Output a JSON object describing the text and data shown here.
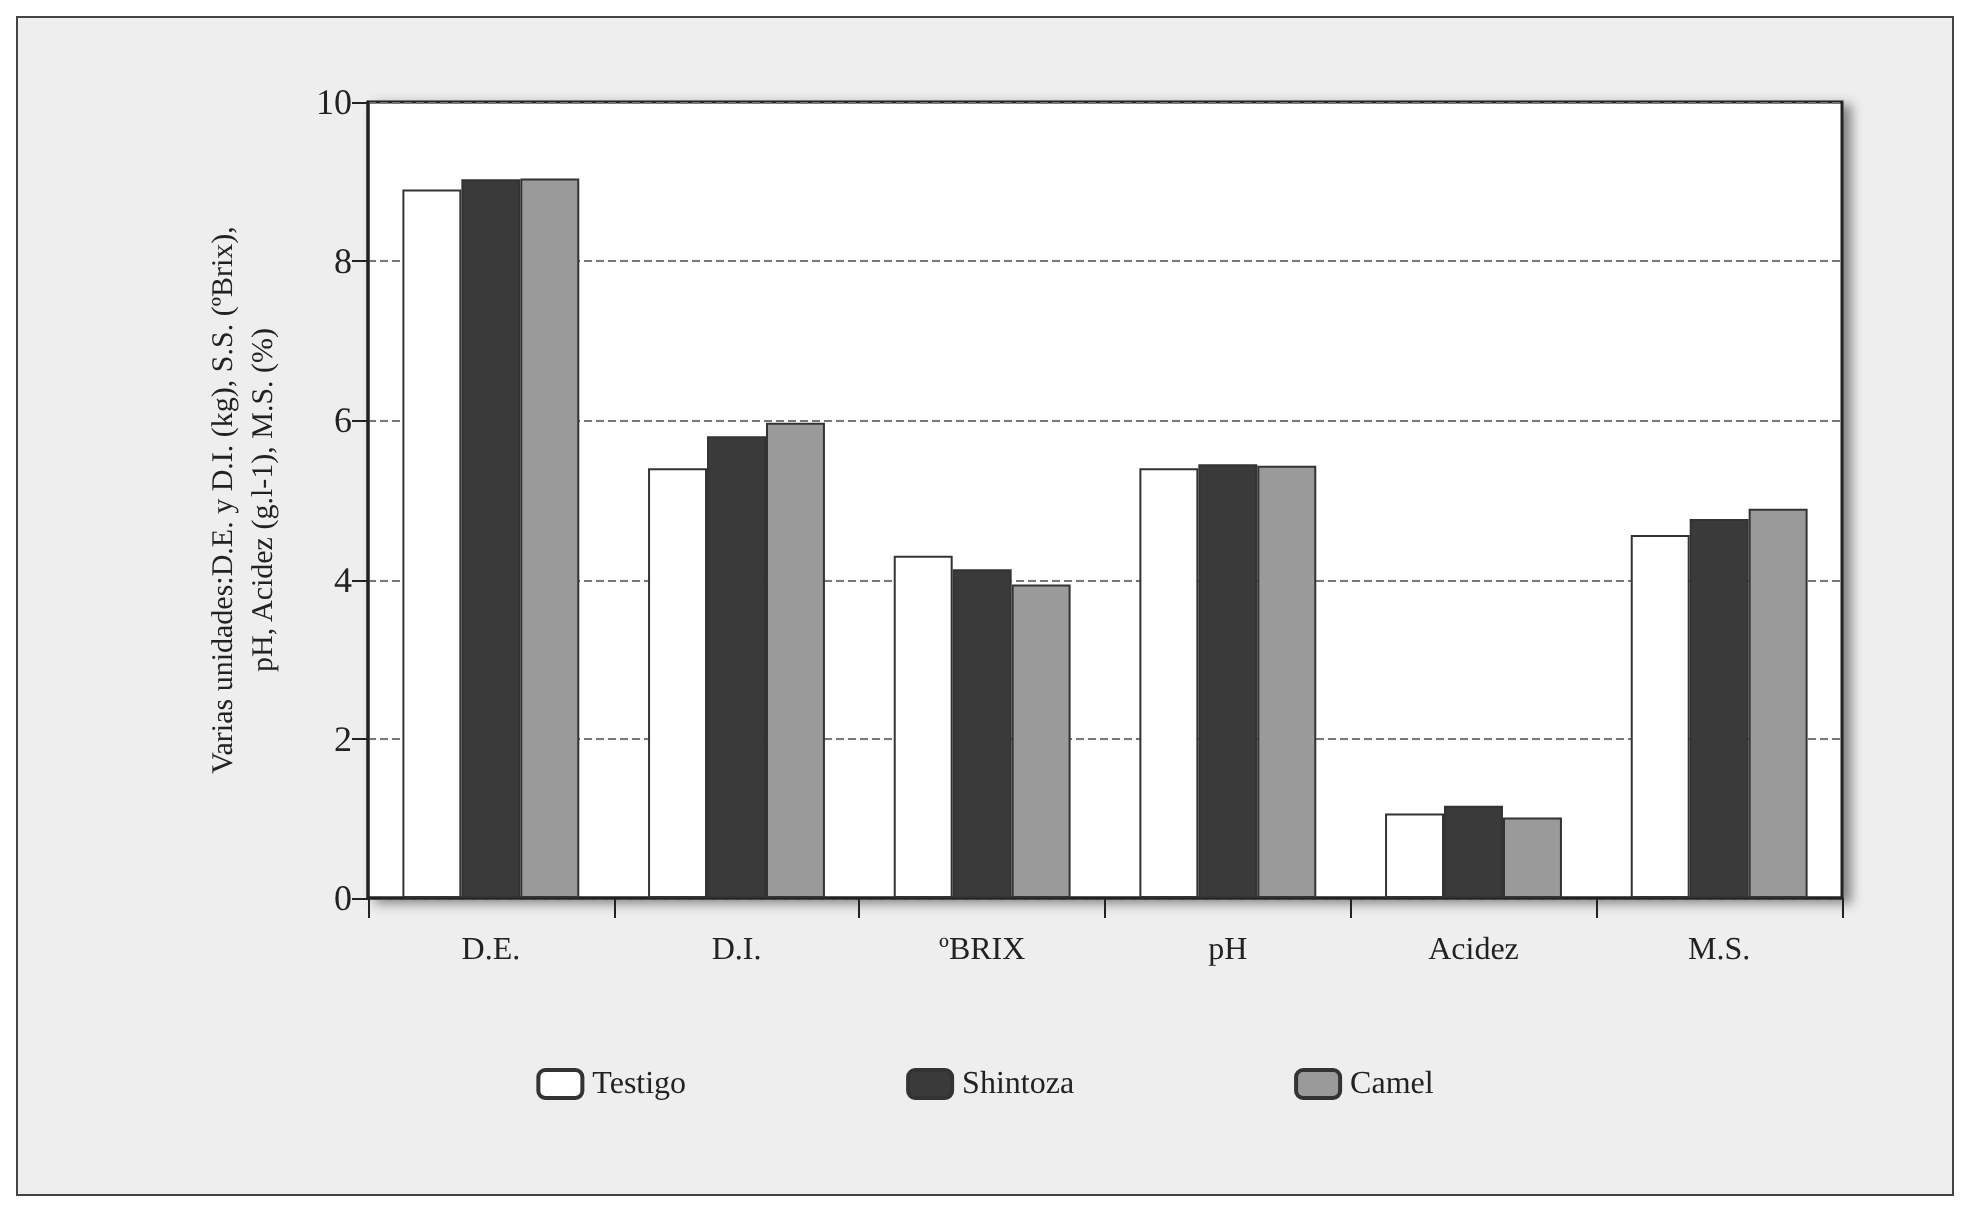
{
  "chart_data": {
    "type": "bar",
    "ylabel": "Varias unidades:D.E. y D.I. (kg), S.S. (ºBrix),\npH, Acidez (g.l-1), M.S. (%)",
    "categories": [
      "D.E.",
      "D.I.",
      "ºBRIX",
      "pH",
      "Acidez",
      "M.S."
    ],
    "series": [
      {
        "name": "Testigo",
        "color": "#ffffff",
        "values": [
          8.9,
          5.4,
          4.3,
          5.4,
          1.06,
          4.56
        ]
      },
      {
        "name": "Shintoza",
        "color": "#3a3a3a",
        "values": [
          9.03,
          5.8,
          4.13,
          5.45,
          1.16,
          4.76
        ]
      },
      {
        "name": "Camel",
        "color": "#9a9a9a",
        "values": [
          9.04,
          5.97,
          3.94,
          5.43,
          1.01,
          4.89
        ]
      }
    ],
    "ylim": [
      0,
      10
    ],
    "yticks": [
      0,
      2,
      4,
      6,
      8,
      10
    ],
    "grid": "y",
    "legend": "bottom"
  }
}
